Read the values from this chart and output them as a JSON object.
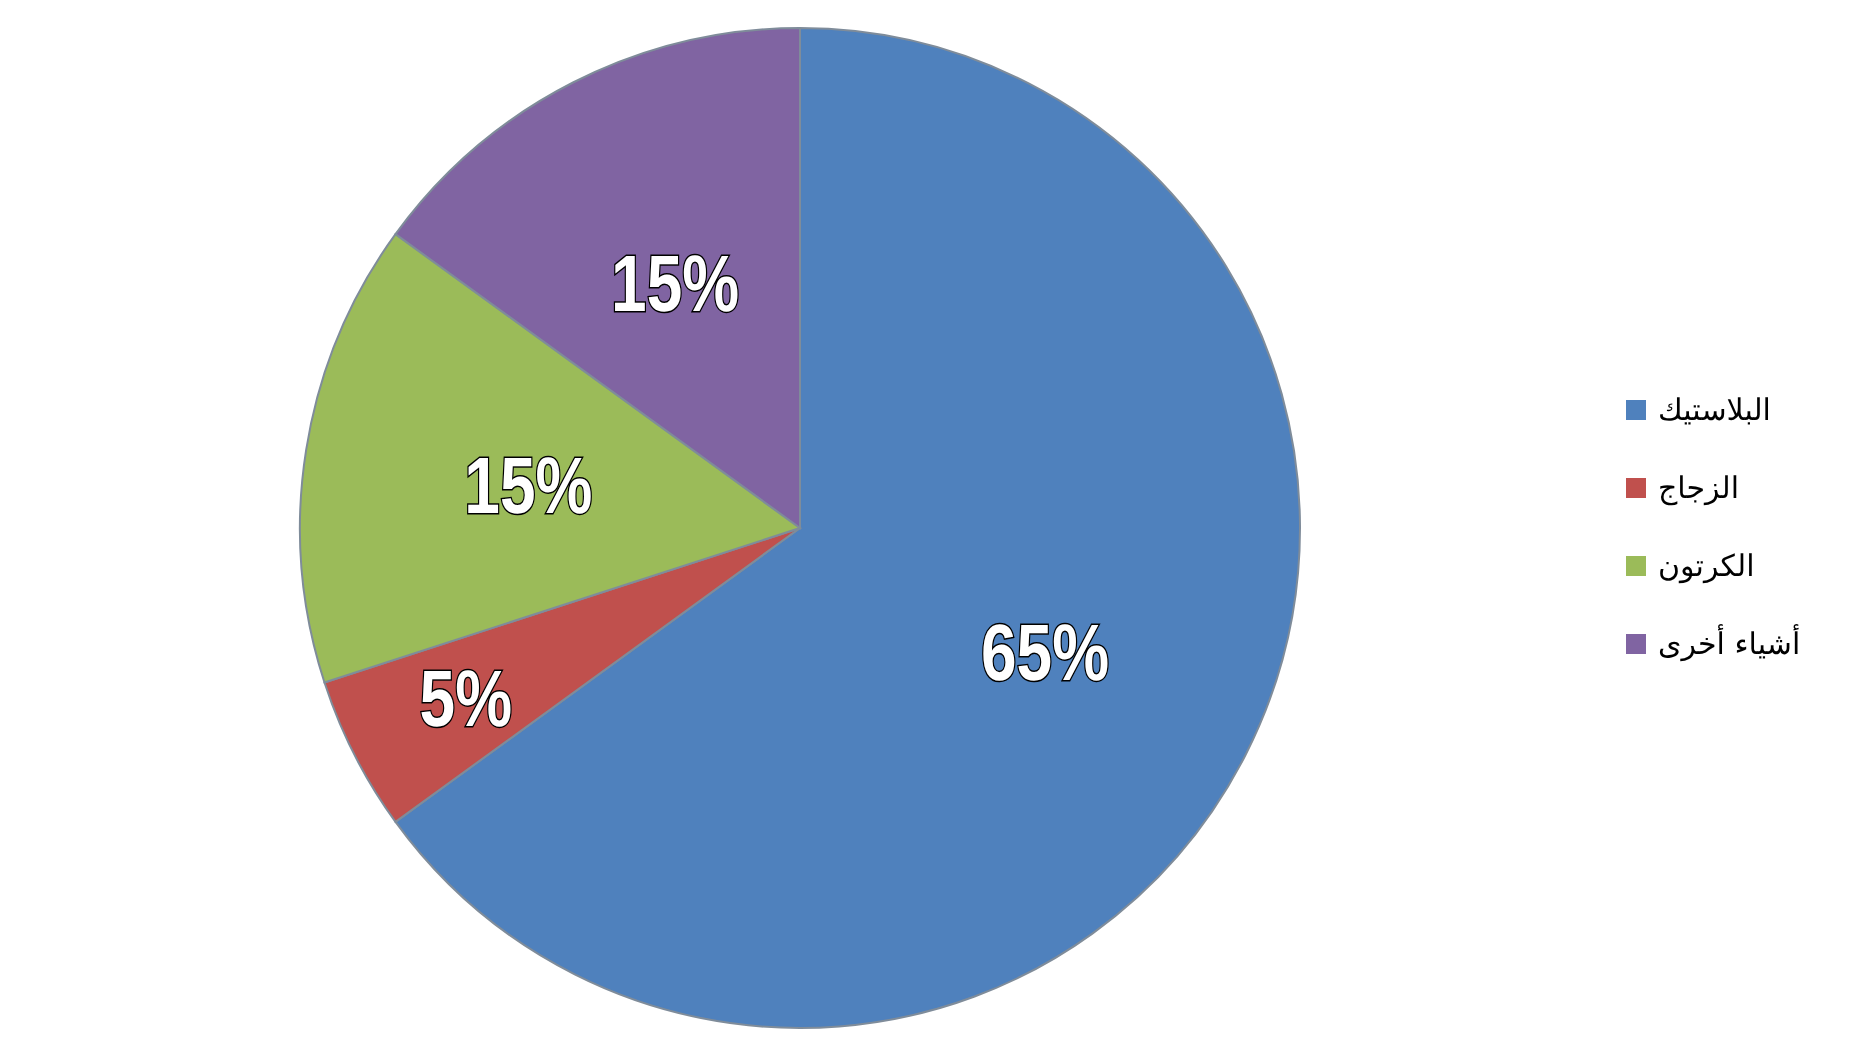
{
  "chart_data": {
    "type": "pie",
    "categories": [
      "البلاستيك",
      "الزجاج",
      "الكرتون",
      "أشياء أخرى"
    ],
    "values": [
      65,
      5,
      15,
      15
    ],
    "colors": [
      "#4f81bd",
      "#c0504d",
      "#9bbb59",
      "#8064a2"
    ],
    "value_labels": [
      "65%",
      "5%",
      "15%",
      "15%"
    ],
    "legend": "right"
  }
}
